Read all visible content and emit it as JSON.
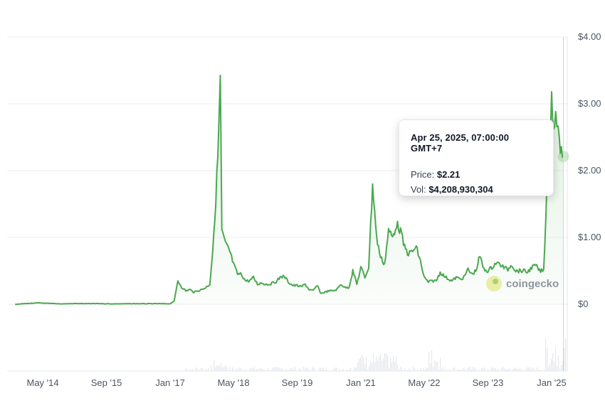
{
  "chart_data": {
    "type": "line",
    "series": [
      {
        "values_note_exempt": true,
        "x": [
          "2013-10",
          "2014-01",
          "2014-04",
          "2014-07",
          "2014-10",
          "2015-01",
          "2015-04",
          "2015-07",
          "2015-10",
          "2016-01",
          "2016-04",
          "2016-07",
          "2016-10",
          "2016-12",
          "2017-01",
          "2017-02",
          "2017-03",
          "2017-04",
          "2017-05",
          "2017-06",
          "2017-07",
          "2017-08",
          "2017-09",
          "2017-10",
          "2017-11",
          "2017-12",
          "2018-01",
          "2018-01-20",
          "2018-02",
          "2018-03",
          "2018-04",
          "2018-05",
          "2018-06",
          "2018-07",
          "2018-08",
          "2018-09",
          "2018-10",
          "2018-11",
          "2018-12",
          "2019-01",
          "2019-02",
          "2019-03",
          "2019-04",
          "2019-05",
          "2019-06",
          "2019-07",
          "2019-08",
          "2019-09",
          "2019-10",
          "2019-11",
          "2019-12",
          "2020-01",
          "2020-02",
          "2020-03",
          "2020-04",
          "2020-05",
          "2020-06",
          "2020-07",
          "2020-08",
          "2020-09",
          "2020-10",
          "2020-11",
          "2020-12",
          "2021-01",
          "2021-02",
          "2021-03",
          "2021-04",
          "2021-05",
          "2021-06",
          "2021-07",
          "2021-08",
          "2021-09",
          "2021-10",
          "2021-11",
          "2021-12",
          "2022-01",
          "2022-02",
          "2022-03",
          "2022-04",
          "2022-05",
          "2022-06",
          "2022-07",
          "2022-08",
          "2022-09",
          "2022-10",
          "2022-11",
          "2022-12",
          "2023-01",
          "2023-02",
          "2023-03",
          "2023-04",
          "2023-05",
          "2023-06",
          "2023-07",
          "2023-08",
          "2023-09",
          "2023-10",
          "2023-11",
          "2023-12",
          "2024-01",
          "2024-02",
          "2024-03",
          "2024-04",
          "2024-05",
          "2024-06",
          "2024-07",
          "2024-08",
          "2024-09",
          "2024-10",
          "2024-11",
          "2024-11-20",
          "2024-12",
          "2024-12-15",
          "2025-01",
          "2025-01-15",
          "2025-02",
          "2025-03",
          "2025-04"
        ],
        "y": [
          0.0,
          0.01,
          0.02,
          0.01,
          0.005,
          0.01,
          0.008,
          0.01,
          0.005,
          0.006,
          0.008,
          0.007,
          0.008,
          0.006,
          0.007,
          0.05,
          0.35,
          0.25,
          0.2,
          0.22,
          0.18,
          0.2,
          0.22,
          0.25,
          0.3,
          1.0,
          2.2,
          3.4,
          1.1,
          0.9,
          0.8,
          0.6,
          0.45,
          0.45,
          0.35,
          0.35,
          0.4,
          0.3,
          0.32,
          0.3,
          0.3,
          0.32,
          0.35,
          0.42,
          0.4,
          0.32,
          0.28,
          0.28,
          0.26,
          0.3,
          0.22,
          0.2,
          0.28,
          0.16,
          0.18,
          0.2,
          0.2,
          0.22,
          0.3,
          0.25,
          0.25,
          0.5,
          0.3,
          0.55,
          0.4,
          0.55,
          1.8,
          1.0,
          0.7,
          0.6,
          1.1,
          1.0,
          1.2,
          1.1,
          0.85,
          0.75,
          0.8,
          0.85,
          0.65,
          0.4,
          0.33,
          0.35,
          0.35,
          0.48,
          0.42,
          0.38,
          0.35,
          0.4,
          0.38,
          0.4,
          0.52,
          0.45,
          0.5,
          0.72,
          0.52,
          0.5,
          0.55,
          0.62,
          0.6,
          0.55,
          0.52,
          0.6,
          0.5,
          0.5,
          0.5,
          0.48,
          0.55,
          0.58,
          0.5,
          0.5,
          1.4,
          2.3,
          1.8,
          3.2,
          2.6,
          2.9,
          2.4,
          2.21
        ]
      }
    ],
    "ylim": [
      -1,
      4
    ],
    "y_ticks": [
      {
        "value": 4,
        "label": "$4.00"
      },
      {
        "value": 3,
        "label": "$3.00"
      },
      {
        "value": 2,
        "label": "$2.00"
      },
      {
        "value": 1,
        "label": "$1.00"
      },
      {
        "value": 0,
        "label": "$0"
      }
    ],
    "x_ticks": [
      {
        "date": "2014-05",
        "label": "May '14"
      },
      {
        "date": "2015-09",
        "label": "Sep '15"
      },
      {
        "date": "2017-01",
        "label": "Jan '17"
      },
      {
        "date": "2018-05",
        "label": "May '18"
      },
      {
        "date": "2019-09",
        "label": "Sep '19"
      },
      {
        "date": "2021-01",
        "label": "Jan '21"
      },
      {
        "date": "2022-05",
        "label": "May '22"
      },
      {
        "date": "2023-09",
        "label": "Sep '23"
      },
      {
        "date": "2025-01",
        "label": "Jan '25"
      }
    ],
    "xrange": [
      "2013-08",
      "2025-05"
    ],
    "grid": true,
    "line_color": "#4aa84f"
  },
  "tooltip": {
    "date": "Apr 25, 2025, 07:00:00 GMT+7",
    "price_label": "Price:",
    "price_value": "$2.21",
    "vol_label": "Vol:",
    "vol_value": "$4,208,930,304"
  },
  "watermark": {
    "text": "coingecko"
  }
}
